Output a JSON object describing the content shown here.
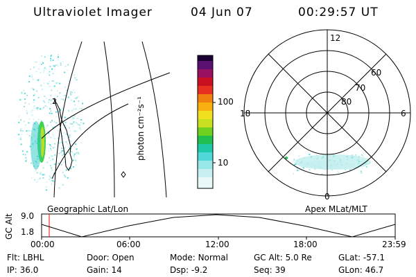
{
  "header": {
    "instrument": "Ultraviolet Imager",
    "date": "04 Jun 07",
    "time": "00:29:57 UT"
  },
  "colorbar": {
    "label": "photon cm⁻²s⁻¹",
    "tick_labels": [
      "100",
      "10"
    ]
  },
  "polar": {
    "hour_labels": {
      "top": "12",
      "left": "18",
      "right": "6",
      "bottom": "0"
    },
    "lat_labels": [
      "60",
      "70",
      "80"
    ]
  },
  "captions": {
    "left": "Geographic Lat/Lon",
    "right": "Apex MLat/MLT"
  },
  "timeline": {
    "axis_label": "GC Alt",
    "y_max": "9.0",
    "y_min": "1.8",
    "x_ticks": [
      "00:00",
      "06:00",
      "12:00",
      "18:00",
      "23:59"
    ]
  },
  "info": {
    "row1": [
      {
        "key": "Flt:",
        "value": "LBHL"
      },
      {
        "key": "Door:",
        "value": "Open"
      },
      {
        "key": "Mode:",
        "value": "Normal"
      },
      {
        "key": "GC Alt:",
        "value": "5.0 Re"
      },
      {
        "key": "GLat:",
        "value": "-57.1"
      }
    ],
    "row2": [
      {
        "key": "IP:",
        "value": "36.0"
      },
      {
        "key": "Gain:",
        "value": "14"
      },
      {
        "key": "Dsp:",
        "value": "-9.2"
      },
      {
        "key": "Seq:",
        "value": "39"
      },
      {
        "key": "GLon:",
        "value": "46.7"
      }
    ]
  },
  "colors": {
    "marker": "#ff0000",
    "line": "#000000"
  }
}
